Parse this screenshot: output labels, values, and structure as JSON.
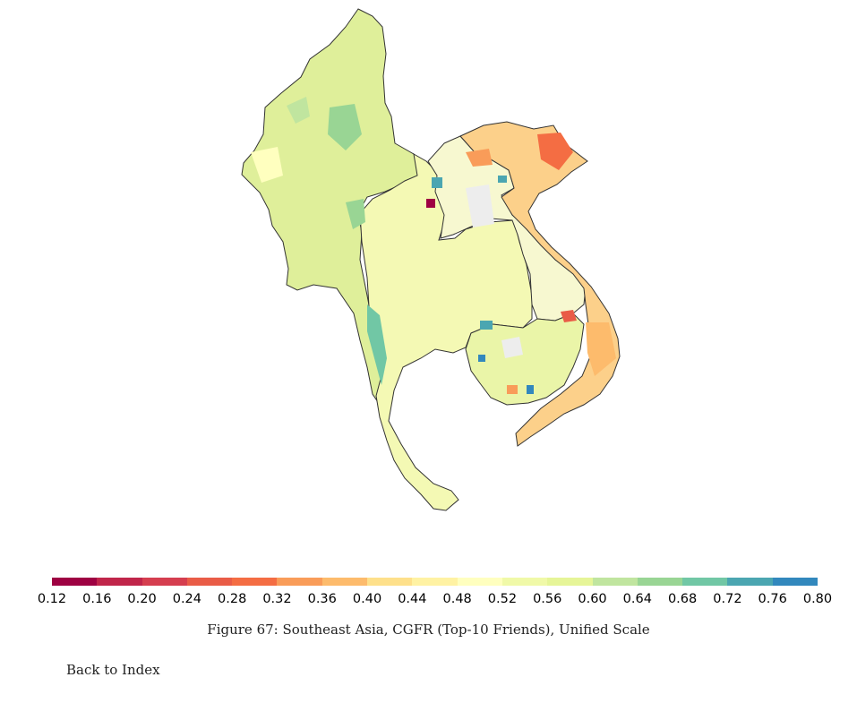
{
  "figure": {
    "caption": "Figure 67: Southeast Asia, CGFR (Top-10 Friends), Unified Scale"
  },
  "colorbar": {
    "colors": [
      "#9e0142",
      "#c0254a",
      "#d53e4f",
      "#e95c47",
      "#f46d43",
      "#f99c59",
      "#fdbb6c",
      "#fee08b",
      "#fff2a3",
      "#ffffbf",
      "#f0f9a8",
      "#e6f598",
      "#c0e59f",
      "#99d594",
      "#71c7a5",
      "#4ba6b1",
      "#3288bd"
    ],
    "tick_labels": [
      "0.12",
      "0.16",
      "0.20",
      "0.24",
      "0.28",
      "0.32",
      "0.36",
      "0.40",
      "0.44",
      "0.48",
      "0.52",
      "0.56",
      "0.60",
      "0.64",
      "0.68",
      "0.72",
      "0.76",
      "0.80"
    ]
  },
  "map": {
    "regions": [
      {
        "name": "Myanmar",
        "color": "#dfef9a"
      },
      {
        "name": "Thailand",
        "color": "#f4f9b4"
      },
      {
        "name": "Laos",
        "color": "#f7f8d0"
      },
      {
        "name": "Vietnam",
        "color": "#fcd08a"
      },
      {
        "name": "Cambodia",
        "color": "#eaf5a8"
      }
    ]
  },
  "nav": {
    "back_label": "Back to Index"
  }
}
